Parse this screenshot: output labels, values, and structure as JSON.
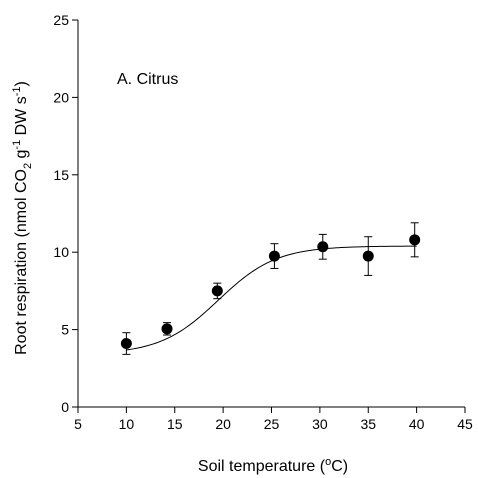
{
  "chart_data": {
    "type": "scatter",
    "panel_label": "A. Citrus",
    "xlabel": "Soil temperature (",
    "xlabel_sup": "o",
    "xlabel_end": "C)",
    "ylabel": {
      "p1": "Root respiration (nmol CO",
      "sub2": "2",
      "p2": " g",
      "sup1": "-1",
      "p3": " DW s",
      "sup2": "-1",
      "p4": ")"
    },
    "xlim": [
      5,
      45
    ],
    "ylim": [
      0,
      25
    ],
    "xticks": [
      "5",
      "10",
      "15",
      "20",
      "25",
      "30",
      "35",
      "40",
      "45"
    ],
    "yticks": [
      "0",
      "5",
      "10",
      "15",
      "20",
      "25"
    ],
    "series": [
      {
        "x": [
          10,
          14.2,
          19.4,
          25.3,
          30.3,
          35,
          39.8
        ],
        "y": [
          4.1,
          5.05,
          7.5,
          9.75,
          10.35,
          9.75,
          10.8
        ],
        "err": [
          0.7,
          0.4,
          0.5,
          0.8,
          0.8,
          1.25,
          1.1
        ]
      }
    ],
    "fit_curve": {
      "type": "sigmoid",
      "y0": 3.4,
      "a": 7.0,
      "x0": 19.5,
      "b": 3.0
    }
  }
}
